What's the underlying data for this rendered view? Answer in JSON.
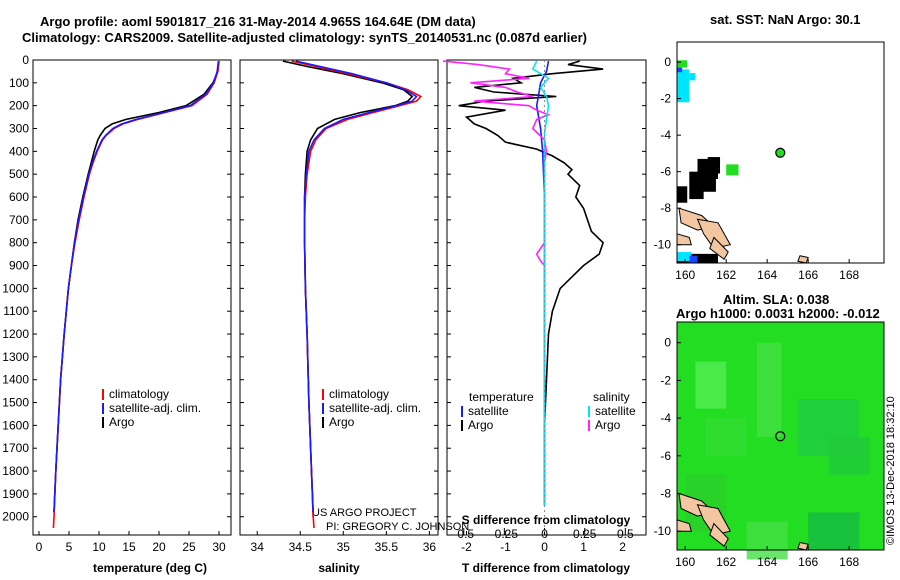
{
  "titles": {
    "line1": "Argo profile: aoml 5901817_216 31-May-2014 4.965S 164.64E (DM data)",
    "line2": "Climatology: CARS2009. Satellite-adjusted climatology: synTS_20140531.nc (0.087d earlier)"
  },
  "colors": {
    "argo": "#000000",
    "clim": "#ff0000",
    "sat": "#1a1aff",
    "cyan": "#00e5ff",
    "magenta": "#ff22ff",
    "land": "#f2c6a0",
    "ocean": "#22dd22"
  },
  "depth_axis": {
    "ticks": [
      0,
      100,
      200,
      300,
      400,
      500,
      600,
      700,
      800,
      900,
      1000,
      1100,
      1200,
      1300,
      1400,
      1500,
      1600,
      1700,
      1800,
      1900,
      2000
    ],
    "range": [
      0,
      2080
    ]
  },
  "legend": {
    "clim": "climatology",
    "sat": "satellite-adj. clim.",
    "argo": "Argo"
  },
  "diff_legend": {
    "temperature": "temperature",
    "salinity": "salinity",
    "satellite": "satellite",
    "argo": "Argo"
  },
  "watermark": {
    "line1": "US ARGO PROJECT",
    "line2": "PI: GREGORY C. JOHNSON"
  },
  "timestamp": "©IMOS 13-Dec-2018 18:32:10",
  "chart_data": [
    {
      "type": "line",
      "name": "temperature-profile",
      "xlabel": "temperature (deg C)",
      "xlim": [
        -1,
        32
      ],
      "xticks": [
        0,
        5,
        10,
        15,
        20,
        25,
        30
      ],
      "series": [
        {
          "name": "Argo",
          "depth": [
            5,
            50,
            100,
            150,
            200,
            230,
            260,
            280,
            300,
            330,
            350,
            400,
            450,
            500,
            600,
            700,
            800,
            900,
            1000,
            1200,
            1400,
            1600,
            1800,
            1980
          ],
          "values": [
            30.0,
            29.8,
            29.0,
            27.5,
            24.5,
            20.0,
            14.5,
            12.2,
            11.0,
            10.2,
            9.8,
            9.2,
            8.7,
            8.2,
            7.3,
            6.5,
            5.9,
            5.4,
            4.9,
            4.2,
            3.6,
            3.2,
            2.8,
            2.5
          ]
        },
        {
          "name": "climatology",
          "depth": [
            5,
            50,
            100,
            150,
            200,
            230,
            260,
            280,
            300,
            330,
            350,
            400,
            450,
            500,
            600,
            700,
            800,
            900,
            1000,
            1200,
            1400,
            1600,
            1800,
            2000,
            2050
          ],
          "values": [
            30.0,
            29.8,
            29.2,
            28.0,
            25.5,
            21.0,
            16.5,
            14.0,
            12.5,
            11.2,
            10.6,
            9.7,
            9.0,
            8.4,
            7.5,
            6.7,
            6.0,
            5.4,
            4.9,
            4.2,
            3.6,
            3.2,
            2.8,
            2.5,
            2.4
          ]
        },
        {
          "name": "satellite",
          "depth": [
            5,
            50,
            100,
            150,
            200,
            230,
            260,
            280,
            300,
            330,
            350,
            400,
            450,
            500,
            600,
            700,
            800,
            900,
            1000,
            1200,
            1400,
            1600,
            1800,
            1980
          ],
          "values": [
            29.9,
            29.7,
            29.1,
            27.8,
            25.2,
            20.8,
            16.2,
            13.8,
            12.3,
            11.1,
            10.5,
            9.6,
            8.9,
            8.3,
            7.4,
            6.6,
            5.9,
            5.4,
            4.9,
            4.2,
            3.6,
            3.2,
            2.8,
            2.5
          ]
        }
      ]
    },
    {
      "type": "line",
      "name": "salinity-profile",
      "xlabel": "salinity",
      "xlim": [
        33.8,
        36.1
      ],
      "xticks": [
        34,
        34.5,
        35,
        35.5,
        36
      ],
      "series": [
        {
          "name": "Argo",
          "depth": [
            5,
            30,
            60,
            100,
            130,
            160,
            180,
            200,
            230,
            260,
            300,
            350,
            400,
            500,
            600,
            700,
            800,
            1000,
            1200,
            1500,
            1800,
            2000
          ],
          "values": [
            34.3,
            34.6,
            35.0,
            35.45,
            35.7,
            35.8,
            35.75,
            35.6,
            35.2,
            34.9,
            34.7,
            34.62,
            34.58,
            34.56,
            34.55,
            34.55,
            34.55,
            34.56,
            34.58,
            34.6,
            34.63,
            34.65
          ]
        },
        {
          "name": "climatology",
          "depth": [
            5,
            30,
            60,
            100,
            130,
            160,
            180,
            200,
            230,
            260,
            300,
            350,
            400,
            500,
            600,
            700,
            800,
            1000,
            1200,
            1500,
            1800,
            2000,
            2050
          ],
          "values": [
            34.4,
            34.7,
            35.05,
            35.5,
            35.75,
            35.9,
            35.85,
            35.65,
            35.35,
            35.05,
            34.8,
            34.68,
            34.62,
            34.58,
            34.56,
            34.55,
            34.55,
            34.56,
            34.58,
            34.6,
            34.63,
            34.65,
            34.66
          ]
        },
        {
          "name": "satellite",
          "depth": [
            5,
            30,
            60,
            100,
            130,
            160,
            180,
            200,
            230,
            260,
            300,
            350,
            400,
            500,
            600,
            700,
            800,
            1000,
            1200,
            1500,
            1800,
            1980
          ],
          "values": [
            34.45,
            34.75,
            35.1,
            35.5,
            35.72,
            35.85,
            35.8,
            35.62,
            35.3,
            35.0,
            34.78,
            34.66,
            34.6,
            34.57,
            34.55,
            34.55,
            34.55,
            34.56,
            34.58,
            34.6,
            34.63,
            34.65
          ]
        }
      ]
    },
    {
      "type": "line",
      "name": "difference-profile",
      "xlabel": "T difference from climatology",
      "xlabel_top": "S difference from climatology",
      "xlim": [
        -2.5,
        2.6
      ],
      "xticks": [
        -2,
        -1,
        0,
        1,
        2
      ],
      "sticks_pos": [
        -2.07,
        -1.03,
        0,
        1.03,
        2.07
      ],
      "sticks": [
        "-0.5",
        "-0.25",
        "0",
        "0.25",
        "0.5"
      ],
      "series": [
        {
          "name": "T Argo",
          "color": "argo",
          "depth": [
            5,
            20,
            40,
            60,
            80,
            100,
            120,
            140,
            160,
            180,
            200,
            220,
            250,
            280,
            300,
            330,
            360,
            390,
            420,
            450,
            480,
            500,
            550,
            600,
            650,
            700,
            750,
            800,
            850,
            900,
            950,
            1000,
            1100,
            1200,
            1400,
            1600,
            1800,
            1950
          ],
          "values": [
            0.9,
            0.6,
            1.5,
            0.2,
            -0.8,
            -0.6,
            -1.8,
            -1.3,
            0.3,
            -1.5,
            -2.2,
            -1.0,
            -2.0,
            -1.8,
            -1.5,
            -1.2,
            -1.0,
            -0.2,
            0.2,
            0.5,
            0.7,
            0.6,
            0.9,
            0.8,
            1.0,
            1.1,
            1.2,
            1.5,
            1.4,
            1.0,
            0.7,
            0.4,
            0.2,
            0.1,
            0.05,
            0.0,
            0.0,
            0.0
          ]
        },
        {
          "name": "T satellite",
          "color": "sat",
          "depth": [
            5,
            50,
            100,
            150,
            200,
            300,
            400,
            600,
            800,
            1000,
            1200,
            1500,
            1800,
            1950
          ],
          "values": [
            0.1,
            0.05,
            -0.1,
            -0.15,
            -0.2,
            -0.1,
            -0.05,
            0.0,
            0.0,
            0.0,
            0.0,
            0.0,
            0.0,
            0.0
          ]
        },
        {
          "name": "S Argo",
          "color": "magenta",
          "depth": [
            5,
            20,
            40,
            60,
            80,
            100,
            120,
            140,
            160,
            180,
            200,
            220,
            240,
            260,
            300,
            350,
            400,
            450,
            500,
            600,
            800,
            850,
            880,
            900,
            1000,
            1200,
            1500,
            1800,
            1950
          ],
          "values": [
            -2.6,
            -1.7,
            -0.9,
            -1.0,
            -0.4,
            -1.9,
            -1.0,
            -0.7,
            -0.3,
            -1.8,
            -0.4,
            -0.2,
            0.1,
            -0.2,
            -0.3,
            0.0,
            0.05,
            0.0,
            0.0,
            0.0,
            0.0,
            -0.2,
            -0.1,
            0.0,
            0.0,
            0.0,
            0.0,
            0.0,
            0.0
          ]
        },
        {
          "name": "S satellite",
          "color": "cyan",
          "depth": [
            5,
            40,
            80,
            120,
            160,
            200,
            260,
            320,
            400,
            600,
            800,
            1000,
            1400,
            1800,
            1950
          ],
          "values": [
            -0.2,
            -0.3,
            0.1,
            -0.1,
            0.05,
            0.1,
            0.05,
            0.0,
            0.0,
            0.0,
            0.0,
            0.0,
            0.0,
            0.0,
            0.0
          ]
        }
      ]
    }
  ],
  "sst_map": {
    "title": "sat. SST: NaN Argo: 30.1",
    "xticks": [
      160,
      162,
      164,
      166,
      168
    ],
    "yticks": [
      0,
      -2,
      -4,
      -6,
      -8,
      -10
    ],
    "xlim": [
      159.6,
      169.7
    ],
    "ylim": [
      -11,
      1.1
    ],
    "float": {
      "lon": 164.64,
      "lat": -4.965
    }
  },
  "sla_map": {
    "title1": "Altim. SLA: 0.038",
    "title2": "Argo h1000: 0.0031 h2000: -0.012",
    "xticks": [
      160,
      162,
      164,
      166,
      168
    ],
    "yticks": [
      0,
      -2,
      -4,
      -6,
      -8,
      -10
    ],
    "xlim": [
      159.6,
      169.7
    ],
    "ylim": [
      -11,
      1.1
    ],
    "float": {
      "lon": 164.64,
      "lat": -4.965
    }
  }
}
